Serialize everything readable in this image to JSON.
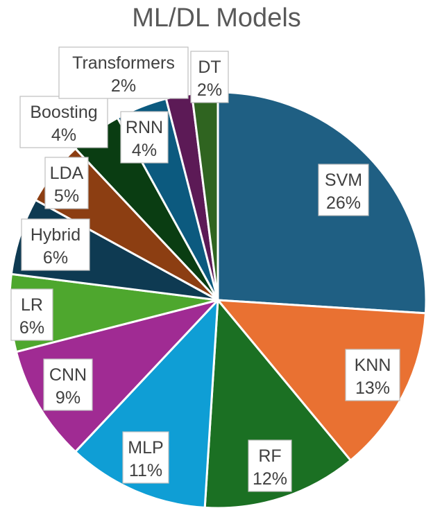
{
  "chart_data": {
    "type": "pie",
    "title": "ML/DL Models",
    "start_angle_deg": 0,
    "direction": "clockwise",
    "slices": [
      {
        "label": "SVM",
        "value": 26,
        "value_label": "26%",
        "color": "#1f5f83"
      },
      {
        "label": "KNN",
        "value": 13,
        "value_label": "13%",
        "color": "#e97132"
      },
      {
        "label": "RF",
        "value": 12,
        "value_label": "12%",
        "color": "#1b7023"
      },
      {
        "label": "MLP",
        "value": 11,
        "value_label": "11%",
        "color": "#0f9ed5"
      },
      {
        "label": "CNN",
        "value": 9,
        "value_label": "9%",
        "color": "#a02b93"
      },
      {
        "label": "LR",
        "value": 6,
        "value_label": "6%",
        "color": "#4ea72e"
      },
      {
        "label": "Hybrid",
        "value": 6,
        "value_label": "6%",
        "color": "#0e3a52"
      },
      {
        "label": "LDA",
        "value": 5,
        "value_label": "5%",
        "color": "#8c3e12"
      },
      {
        "label": "Boosting",
        "value": 4,
        "value_label": "4%",
        "color": "#0a3d12"
      },
      {
        "label": "RNN",
        "value": 4,
        "value_label": "4%",
        "color": "#0c5a7f"
      },
      {
        "label": "Transformers",
        "value": 2,
        "value_label": "2%",
        "color": "#5c1a56"
      },
      {
        "label": "DT",
        "value": 2,
        "value_label": "2%",
        "color": "#2f6420"
      }
    ]
  }
}
